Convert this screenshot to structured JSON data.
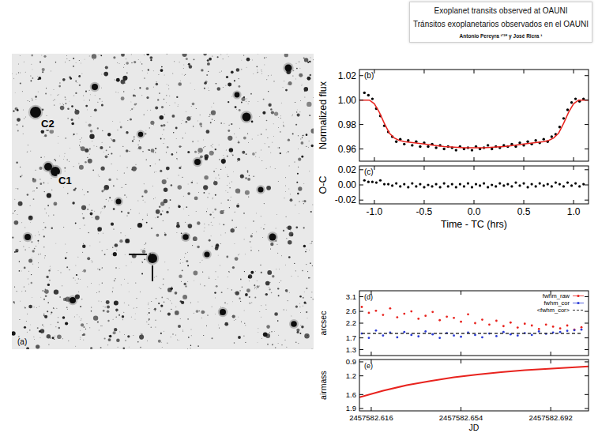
{
  "header": {
    "title": "Exoplanet transits observed at OAUNI",
    "subtitle": "Tránsitos exoplanetarios observados en el OAUNI",
    "authors": "Antonio Pereyra ¹ʼ²* y José Ricra ¹"
  },
  "image": {
    "panel_label": "(a)",
    "labels": [
      "C2",
      "C1"
    ]
  },
  "chart_data": [
    {
      "type": "scatter",
      "panel_label": "(b)",
      "y_label": "Normalized flux",
      "xlim": [
        -1.15,
        1.15
      ],
      "ylim": [
        0.95,
        1.025
      ],
      "xticks": [
        -1,
        -0.5,
        0,
        0.5,
        1
      ],
      "yticks": [
        {
          "value": 1.02,
          "label": "1.02"
        },
        {
          "value": 1,
          "label": "1.00"
        },
        {
          "value": 0.98,
          "label": "0.98"
        },
        {
          "value": 0.96,
          "label": "0.96"
        }
      ],
      "tick_labels": "y",
      "series": [
        {
          "type": "scatter",
          "color": "#000000",
          "marker": "circle",
          "x": [
            -1.1,
            -1.06,
            -1.02,
            -0.98,
            -0.94,
            -0.9,
            -0.86,
            -0.82,
            -0.78,
            -0.74,
            -0.7,
            -0.66,
            -0.62,
            -0.58,
            -0.54,
            -0.5,
            -0.46,
            -0.42,
            -0.38,
            -0.34,
            -0.3,
            -0.26,
            -0.22,
            -0.18,
            -0.14,
            -0.1,
            -0.06,
            -0.02,
            0.02,
            0.06,
            0.1,
            0.14,
            0.18,
            0.22,
            0.26,
            0.3,
            0.34,
            0.38,
            0.42,
            0.46,
            0.5,
            0.54,
            0.58,
            0.62,
            0.66,
            0.7,
            0.74,
            0.78,
            0.82,
            0.86,
            0.9,
            0.94,
            0.98,
            1.02,
            1.06,
            1.1
          ],
          "values": [
            1.006,
            1.004,
            1.001,
            0.993,
            0.987,
            0.979,
            0.974,
            0.97,
            0.966,
            0.968,
            0.964,
            0.967,
            0.963,
            0.966,
            0.962,
            0.965,
            0.962,
            0.964,
            0.961,
            0.963,
            0.96,
            0.962,
            0.961,
            0.959,
            0.962,
            0.96,
            0.961,
            0.959,
            0.962,
            0.96,
            0.961,
            0.963,
            0.96,
            0.962,
            0.961,
            0.963,
            0.962,
            0.964,
            0.962,
            0.965,
            0.963,
            0.966,
            0.964,
            0.967,
            0.965,
            0.968,
            0.966,
            0.97,
            0.972,
            0.978,
            0.985,
            0.992,
            0.998,
            1.001,
            0.999,
            1.001
          ]
        },
        {
          "type": "line",
          "color": "#e8231e",
          "line_style": "solid",
          "x": [
            -1.15,
            -1.1,
            -1.05,
            -1.0,
            -0.95,
            -0.9,
            -0.85,
            -0.8,
            -0.75,
            -0.7,
            -0.6,
            -0.5,
            -0.4,
            -0.3,
            -0.2,
            -0.1,
            0,
            0.1,
            0.2,
            0.3,
            0.4,
            0.5,
            0.6,
            0.7,
            0.75,
            0.8,
            0.85,
            0.9,
            0.95,
            1.0,
            1.05,
            1.1,
            1.15
          ],
          "values": [
            1.0,
            1.0,
            1.0,
            0.997,
            0.99,
            0.981,
            0.973,
            0.969,
            0.967,
            0.966,
            0.965,
            0.964,
            0.963,
            0.962,
            0.9615,
            0.961,
            0.961,
            0.961,
            0.9615,
            0.962,
            0.963,
            0.964,
            0.965,
            0.966,
            0.967,
            0.969,
            0.973,
            0.981,
            0.99,
            0.997,
            1.0,
            1.0,
            1.0
          ]
        }
      ]
    },
    {
      "type": "scatter",
      "panel_label": "(c)",
      "x_label": "Time - TC (hrs)",
      "y_label": "O-C",
      "xlim": [
        -1.15,
        1.15
      ],
      "ylim": [
        -0.025,
        0.025
      ],
      "xticks": [
        {
          "value": -1,
          "label": "-1.0"
        },
        {
          "value": -0.5,
          "label": "-0.5"
        },
        {
          "value": 0,
          "label": "0.0"
        },
        {
          "value": 0.5,
          "label": "0.5"
        },
        {
          "value": 1,
          "label": "1.0"
        }
      ],
      "yticks": [
        {
          "value": 0.02,
          "label": "0.02"
        },
        {
          "value": 0,
          "label": "0.00"
        },
        {
          "value": -0.02,
          "label": "-0.02"
        }
      ],
      "series": [
        {
          "type": "scatter",
          "color": "#000000",
          "marker": "circle",
          "x": [
            -1.1,
            -1.06,
            -1.02,
            -0.98,
            -0.94,
            -0.9,
            -0.86,
            -0.82,
            -0.78,
            -0.74,
            -0.7,
            -0.66,
            -0.62,
            -0.58,
            -0.54,
            -0.5,
            -0.46,
            -0.42,
            -0.38,
            -0.34,
            -0.3,
            -0.26,
            -0.22,
            -0.18,
            -0.14,
            -0.1,
            -0.06,
            -0.02,
            0.02,
            0.06,
            0.1,
            0.14,
            0.18,
            0.22,
            0.26,
            0.3,
            0.34,
            0.38,
            0.42,
            0.46,
            0.5,
            0.54,
            0.58,
            0.62,
            0.66,
            0.7,
            0.74,
            0.78,
            0.82,
            0.86,
            0.9,
            0.94,
            0.98,
            1.02,
            1.06,
            1.1
          ],
          "values": [
            0.006,
            0.004,
            0.004,
            0.003,
            0.006,
            0.001,
            0.001,
            -0.001,
            0.002,
            -0.002,
            0.001,
            -0.003,
            0.002,
            -0.002,
            0.001,
            -0.003,
            0.0,
            -0.002,
            0.001,
            -0.003,
            0.002,
            -0.002,
            0.001,
            -0.003,
            0.001,
            -0.002,
            0.002,
            -0.003,
            0.001,
            -0.001,
            0.002,
            -0.003,
            0.0,
            -0.002,
            0.002,
            -0.001,
            0.001,
            -0.002,
            0.003,
            -0.001,
            0.002,
            -0.003,
            0.001,
            -0.002,
            0.002,
            -0.001,
            0.001,
            -0.002,
            0.003,
            0.001,
            -0.002,
            0.003,
            -0.001,
            0.002,
            -0.002,
            0.001
          ]
        }
      ]
    },
    {
      "type": "scatter",
      "panel_label": "(d)",
      "y_label": "arcsec",
      "xlim": [
        2457582.611,
        2457582.708
      ],
      "ylim": [
        1.1,
        3.3
      ],
      "xticks": [
        2457582.616,
        2457582.654,
        2457582.692
      ],
      "yticks": [
        3.1,
        2.6,
        2.2,
        1.7,
        1.3
      ],
      "tick_labels": "y",
      "legend": "upper right",
      "series": [
        {
          "name": "fwhm_raw",
          "type": "scatter",
          "color": "#e8231e",
          "marker": "circle",
          "x": [
            2457582.612,
            2457582.615,
            2457582.618,
            2457582.621,
            2457582.624,
            2457582.627,
            2457582.63,
            2457582.633,
            2457582.636,
            2457582.639,
            2457582.642,
            2457582.645,
            2457582.648,
            2457582.651,
            2457582.654,
            2457582.657,
            2457582.66,
            2457582.663,
            2457582.666,
            2457582.669,
            2457582.672,
            2457582.675,
            2457582.678,
            2457582.681,
            2457582.684,
            2457582.687,
            2457582.69,
            2457582.693,
            2457582.696,
            2457582.699,
            2457582.702,
            2457582.705
          ],
          "values": [
            2.75,
            2.55,
            2.62,
            2.48,
            2.7,
            2.4,
            2.52,
            2.6,
            2.35,
            2.45,
            2.58,
            2.3,
            2.42,
            2.38,
            2.25,
            2.5,
            2.2,
            2.32,
            2.15,
            2.28,
            2.1,
            2.22,
            2.05,
            2.18,
            2.12,
            2.0,
            2.15,
            2.08,
            2.02,
            2.12,
            1.98,
            2.06
          ]
        },
        {
          "name": "fwhm_cor",
          "type": "scatter",
          "color": "#2b3bd6",
          "marker": "circle",
          "x": [
            2457582.612,
            2457582.615,
            2457582.618,
            2457582.621,
            2457582.624,
            2457582.627,
            2457582.63,
            2457582.633,
            2457582.636,
            2457582.639,
            2457582.642,
            2457582.645,
            2457582.648,
            2457582.651,
            2457582.654,
            2457582.657,
            2457582.66,
            2457582.663,
            2457582.666,
            2457582.669,
            2457582.672,
            2457582.675,
            2457582.678,
            2457582.681,
            2457582.684,
            2457582.687,
            2457582.69,
            2457582.693,
            2457582.696,
            2457582.699,
            2457582.702,
            2457582.705
          ],
          "values": [
            1.85,
            1.7,
            1.95,
            1.78,
            1.88,
            1.72,
            1.9,
            1.8,
            1.75,
            1.92,
            1.82,
            1.7,
            1.86,
            1.78,
            1.74,
            1.88,
            1.8,
            1.72,
            1.85,
            1.76,
            1.9,
            1.82,
            1.78,
            1.86,
            1.8,
            1.92,
            1.84,
            1.88,
            1.9,
            1.94,
            1.96,
            1.98
          ]
        },
        {
          "name": "<fwhm_cor>",
          "type": "line",
          "color": "#333333",
          "line_style": "dashed",
          "x": [
            2457582.612,
            2457582.705
          ],
          "values": [
            1.85,
            1.85
          ]
        }
      ]
    },
    {
      "type": "line",
      "panel_label": "(e)",
      "x_label": "JD",
      "y_label": "airmass",
      "xlim": [
        2457582.611,
        2457582.708
      ],
      "ylim": [
        1.95,
        0.85
      ],
      "xticks": [
        2457582.616,
        2457582.654,
        2457582.692
      ],
      "yticks": [
        0.9,
        1.2,
        1.6,
        1.9
      ],
      "series": [
        {
          "type": "line",
          "color": "#e8231e",
          "line_style": "solid",
          "x": [
            2457582.611,
            2457582.621,
            2457582.631,
            2457582.641,
            2457582.651,
            2457582.661,
            2457582.671,
            2457582.681,
            2457582.691,
            2457582.701,
            2457582.708
          ],
          "values": [
            1.66,
            1.52,
            1.4,
            1.31,
            1.23,
            1.17,
            1.12,
            1.08,
            1.05,
            1.02,
            1.0
          ]
        }
      ]
    }
  ]
}
